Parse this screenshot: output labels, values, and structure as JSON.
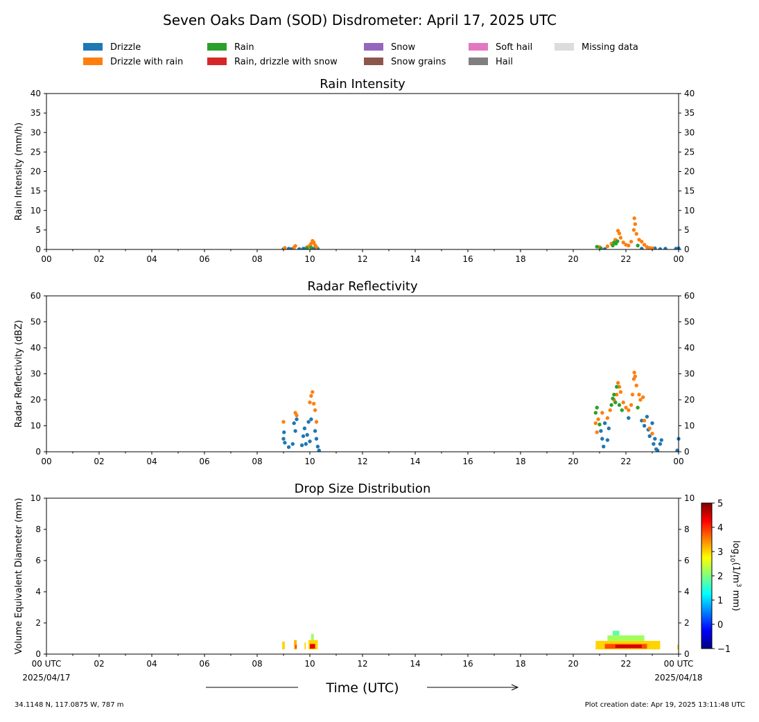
{
  "title": "Seven Oaks Dam (SOD) Disdrometer: April 17, 2025 UTC",
  "legend": [
    {
      "label": "Drizzle",
      "color": "#1f77b4"
    },
    {
      "label": "Drizzle with rain",
      "color": "#ff7f0e"
    },
    {
      "label": "Rain",
      "color": "#2ca02c"
    },
    {
      "label": "Rain, drizzle with snow",
      "color": "#d62728"
    },
    {
      "label": "Snow",
      "color": "#9467bd"
    },
    {
      "label": "Snow grains",
      "color": "#8c564b"
    },
    {
      "label": "Soft hail",
      "color": "#e377c2"
    },
    {
      "label": "Hail",
      "color": "#7f7f7f"
    },
    {
      "label": "Missing data",
      "color": "#dcdcdc"
    }
  ],
  "time_axis": {
    "label": "Time (UTC)",
    "tick_labels": [
      "00",
      "02",
      "04",
      "06",
      "08",
      "10",
      "12",
      "14",
      "16",
      "18",
      "20",
      "22",
      "00"
    ],
    "bottom_tick_labels": [
      "00 UTC",
      "02",
      "04",
      "06",
      "08",
      "10",
      "12",
      "14",
      "16",
      "18",
      "20",
      "22",
      "00 UTC"
    ],
    "start_date": "2025/04/17",
    "end_date": "2025/04/18"
  },
  "footer": {
    "location": "34.1148 N, 117.0875 W, 787 m",
    "creation": "Plot creation date: Apr 19, 2025 13:11:48 UTC"
  },
  "chart_data": [
    {
      "type": "scatter",
      "title": "Rain Intensity",
      "ylabel": "Rain Intensity (mm/h)",
      "xlim": [
        0,
        24
      ],
      "ylim": [
        0,
        40
      ],
      "yticks": [
        0,
        5,
        10,
        15,
        20,
        25,
        30,
        35,
        40
      ],
      "series": [
        {
          "name": "Drizzle",
          "color": "#1f77b4",
          "points": [
            [
              9.0,
              0.1
            ],
            [
              9.2,
              0.2
            ],
            [
              9.3,
              0.1
            ],
            [
              9.6,
              0.1
            ],
            [
              9.75,
              0.2
            ],
            [
              9.85,
              0.3
            ],
            [
              10.1,
              0.2
            ],
            [
              10.2,
              0.3
            ],
            [
              10.3,
              0.2
            ],
            [
              21.2,
              0.1
            ],
            [
              22.6,
              0.2
            ],
            [
              22.9,
              0.1
            ],
            [
              23.1,
              0.3
            ],
            [
              23.3,
              0.1
            ],
            [
              23.5,
              0.2
            ],
            [
              23.9,
              0.2
            ],
            [
              24.0,
              0.3
            ]
          ]
        },
        {
          "name": "Drizzle with rain",
          "color": "#ff7f0e",
          "points": [
            [
              9.05,
              0.4
            ],
            [
              9.4,
              0.5
            ],
            [
              9.45,
              0.9
            ],
            [
              9.9,
              0.6
            ],
            [
              10.0,
              1.0
            ],
            [
              10.05,
              1.5
            ],
            [
              10.1,
              2.2
            ],
            [
              10.15,
              1.8
            ],
            [
              10.2,
              1.1
            ],
            [
              10.25,
              0.6
            ],
            [
              21.0,
              0.6
            ],
            [
              21.3,
              0.8
            ],
            [
              21.45,
              1.5
            ],
            [
              21.6,
              2.5
            ],
            [
              21.7,
              4.8
            ],
            [
              21.75,
              4.1
            ],
            [
              21.8,
              3.0
            ],
            [
              21.9,
              1.8
            ],
            [
              22.0,
              1.2
            ],
            [
              22.1,
              1.0
            ],
            [
              22.2,
              2.0
            ],
            [
              22.3,
              5.0
            ],
            [
              22.32,
              8.0
            ],
            [
              22.35,
              6.5
            ],
            [
              22.4,
              4.0
            ],
            [
              22.5,
              2.5
            ],
            [
              22.6,
              2.0
            ],
            [
              22.7,
              1.2
            ],
            [
              22.8,
              0.6
            ],
            [
              22.9,
              0.4
            ],
            [
              23.0,
              0.3
            ]
          ]
        },
        {
          "name": "Rain",
          "color": "#2ca02c",
          "points": [
            [
              9.9,
              0.3
            ],
            [
              10.05,
              0.5
            ],
            [
              20.9,
              0.7
            ],
            [
              21.05,
              0.3
            ],
            [
              21.5,
              1.0
            ],
            [
              21.55,
              1.8
            ],
            [
              21.62,
              1.5
            ],
            [
              21.68,
              2.1
            ],
            [
              22.45,
              1.0
            ]
          ]
        }
      ]
    },
    {
      "type": "scatter",
      "title": "Radar Reflectivity",
      "ylabel": "Radar Reflectivity (dBZ)",
      "xlim": [
        0,
        24
      ],
      "ylim": [
        0,
        60
      ],
      "yticks": [
        0,
        10,
        20,
        30,
        40,
        50,
        60
      ],
      "series": [
        {
          "name": "Drizzle",
          "color": "#1f77b4",
          "points": [
            [
              9.0,
              5.0
            ],
            [
              9.02,
              7.5
            ],
            [
              9.05,
              3.5
            ],
            [
              9.2,
              1.8
            ],
            [
              9.35,
              3.0
            ],
            [
              9.4,
              11.0
            ],
            [
              9.45,
              8.0
            ],
            [
              9.5,
              12.5
            ],
            [
              9.7,
              2.5
            ],
            [
              9.75,
              6.0
            ],
            [
              9.8,
              9.0
            ],
            [
              9.85,
              3.0
            ],
            [
              9.9,
              6.5
            ],
            [
              9.95,
              11.5
            ],
            [
              10.0,
              4.0
            ],
            [
              10.05,
              12.5
            ],
            [
              10.2,
              8.0
            ],
            [
              10.25,
              5.0
            ],
            [
              10.3,
              2.0
            ],
            [
              10.35,
              0.5
            ],
            [
              21.05,
              8.0
            ],
            [
              21.1,
              5.0
            ],
            [
              21.15,
              2.0
            ],
            [
              21.2,
              11.0
            ],
            [
              21.3,
              4.5
            ],
            [
              21.35,
              9.0
            ],
            [
              22.1,
              13.0
            ],
            [
              22.6,
              12.0
            ],
            [
              22.7,
              10.0
            ],
            [
              22.8,
              13.5
            ],
            [
              22.85,
              8.5
            ],
            [
              22.9,
              6.0
            ],
            [
              23.0,
              11.0
            ],
            [
              23.05,
              3.0
            ],
            [
              23.1,
              5.0
            ],
            [
              23.15,
              1.0
            ],
            [
              23.2,
              0.5
            ],
            [
              23.3,
              3.0
            ],
            [
              23.35,
              4.5
            ],
            [
              24.0,
              5.0
            ],
            [
              23.95,
              0.5
            ]
          ]
        },
        {
          "name": "Drizzle with rain",
          "color": "#ff7f0e",
          "points": [
            [
              9.0,
              11.5
            ],
            [
              9.45,
              15.0
            ],
            [
              9.5,
              14.0
            ],
            [
              10.0,
              19.0
            ],
            [
              10.05,
              21.5
            ],
            [
              10.1,
              23.0
            ],
            [
              10.15,
              18.5
            ],
            [
              10.2,
              16.0
            ],
            [
              10.25,
              11.5
            ],
            [
              20.85,
              11.0
            ],
            [
              20.9,
              7.5
            ],
            [
              20.95,
              12.5
            ],
            [
              21.1,
              15.0
            ],
            [
              21.3,
              13.0
            ],
            [
              21.4,
              16.0
            ],
            [
              21.55,
              20.0
            ],
            [
              21.65,
              22.0
            ],
            [
              21.7,
              26.5
            ],
            [
              21.75,
              25.0
            ],
            [
              21.8,
              23.0
            ],
            [
              21.9,
              19.0
            ],
            [
              22.0,
              17.0
            ],
            [
              22.1,
              16.0
            ],
            [
              22.2,
              18.0
            ],
            [
              22.25,
              22.0
            ],
            [
              22.3,
              28.0
            ],
            [
              22.32,
              30.5
            ],
            [
              22.35,
              29.0
            ],
            [
              22.4,
              25.5
            ],
            [
              22.5,
              22.0
            ],
            [
              22.55,
              20.0
            ],
            [
              22.65,
              21.0
            ],
            [
              22.7,
              12.0
            ],
            [
              22.9,
              9.0
            ],
            [
              23.0,
              7.0
            ]
          ]
        },
        {
          "name": "Rain",
          "color": "#2ca02c",
          "points": [
            [
              20.85,
              15.0
            ],
            [
              20.9,
              17.0
            ],
            [
              21.0,
              10.5
            ],
            [
              21.45,
              18.0
            ],
            [
              21.5,
              20.5
            ],
            [
              21.55,
              22.0
            ],
            [
              21.6,
              19.0
            ],
            [
              21.65,
              25.0
            ],
            [
              21.75,
              18.0
            ],
            [
              21.85,
              16.0
            ],
            [
              22.45,
              17.0
            ]
          ]
        }
      ]
    },
    {
      "type": "heatmap",
      "title": "Drop Size Distribution",
      "ylabel": "Volume Equivalent Diameter (mm)",
      "xlim": [
        0,
        24
      ],
      "ylim": [
        0,
        10
      ],
      "yticks": [
        0,
        2,
        4,
        6,
        8,
        10
      ],
      "colorbar": {
        "label": "log10(1/m3 mm)",
        "label_main": "log",
        "label_sub": "10",
        "label_rest": "(1/m",
        "label_sup": "3",
        "label_end": " mm)",
        "range": [
          -1,
          5
        ],
        "ticks": [
          -1,
          0,
          1,
          2,
          3,
          4,
          5
        ],
        "tick_labels": [
          "−1",
          "0",
          "1",
          "2",
          "3",
          "4",
          "5"
        ],
        "colors": [
          "#00007f",
          "#0000ff",
          "#007fff",
          "#00ffff",
          "#7fff7f",
          "#ffff00",
          "#ff7f00",
          "#ff0000",
          "#7f0000"
        ]
      },
      "cells": [
        {
          "t0": 8.95,
          "t1": 9.05,
          "d0": 0.3,
          "d1": 0.8,
          "v": 3.0
        },
        {
          "t0": 9.4,
          "t1": 9.5,
          "d0": 0.3,
          "d1": 0.9,
          "v": 3.2
        },
        {
          "t0": 9.45,
          "t1": 9.5,
          "d0": 0.35,
          "d1": 0.6,
          "v": 4.0
        },
        {
          "t0": 9.8,
          "t1": 9.85,
          "d0": 0.3,
          "d1": 0.75,
          "v": 3.0
        },
        {
          "t0": 9.95,
          "t1": 10.3,
          "d0": 0.3,
          "d1": 0.9,
          "v": 3.0
        },
        {
          "t0": 10.0,
          "t1": 10.2,
          "d0": 0.35,
          "d1": 0.65,
          "v": 4.4
        },
        {
          "t0": 10.05,
          "t1": 10.15,
          "d0": 0.9,
          "d1": 1.3,
          "v": 2.2
        },
        {
          "t0": 20.85,
          "t1": 23.3,
          "d0": 0.3,
          "d1": 0.85,
          "v": 3.0
        },
        {
          "t0": 21.2,
          "t1": 22.8,
          "d0": 0.35,
          "d1": 0.65,
          "v": 3.8
        },
        {
          "t0": 21.6,
          "t1": 22.6,
          "d0": 0.4,
          "d1": 0.6,
          "v": 4.5
        },
        {
          "t0": 21.3,
          "t1": 22.7,
          "d0": 0.85,
          "d1": 1.2,
          "v": 2.2
        },
        {
          "t0": 21.5,
          "t1": 21.75,
          "d0": 1.2,
          "d1": 1.5,
          "v": 1.8
        },
        {
          "t0": 23.95,
          "t1": 24.0,
          "d0": 0.3,
          "d1": 0.6,
          "v": 3.0
        }
      ]
    }
  ]
}
